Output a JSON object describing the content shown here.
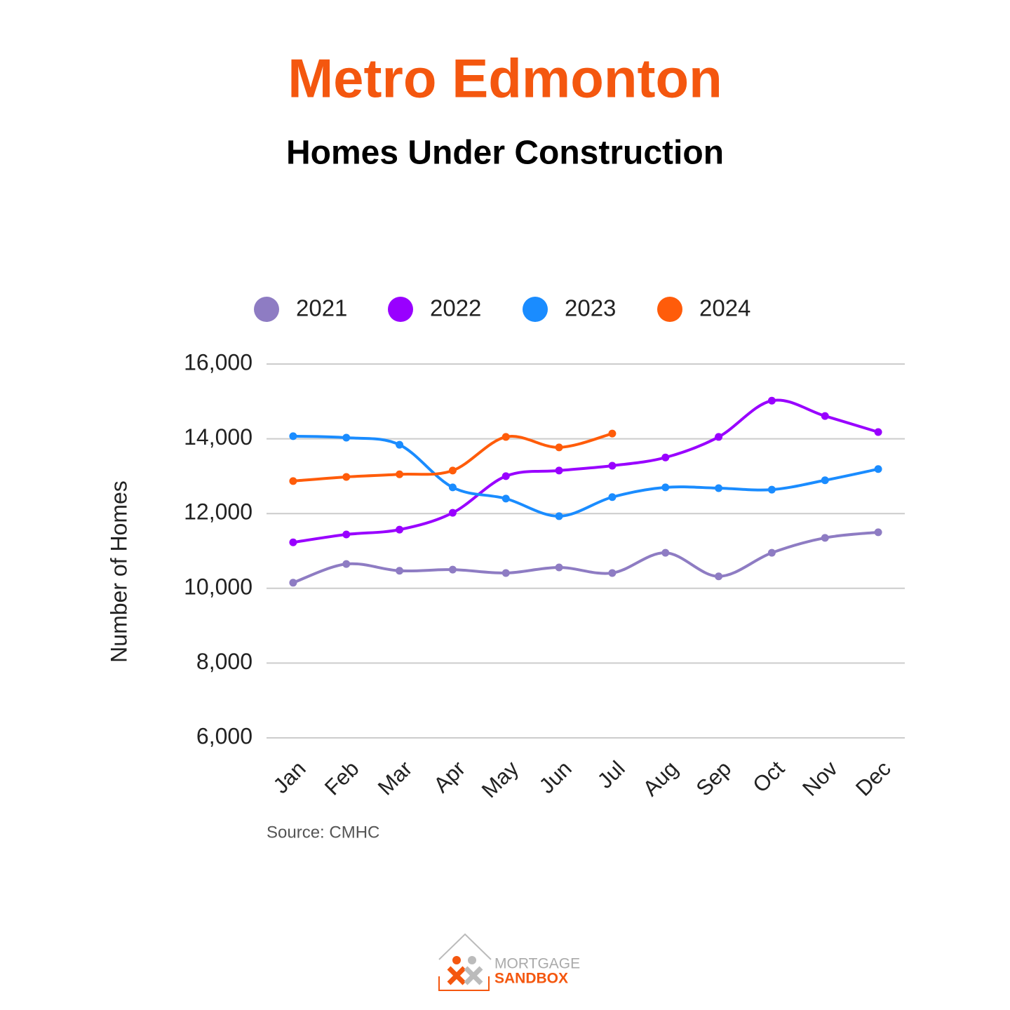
{
  "chart_data": {
    "type": "line",
    "title": "Metro Edmonton",
    "subtitle": "Homes Under Construction",
    "y_label": "Number of Homes",
    "source": "Source: CMHC",
    "categories": [
      "Jan",
      "Feb",
      "Mar",
      "Apr",
      "May",
      "Jun",
      "Jul",
      "Aug",
      "Sep",
      "Oct",
      "Nov",
      "Dec"
    ],
    "series": [
      {
        "name": "2021",
        "color": "#8e7cc3",
        "values": [
          10150,
          10650,
          10470,
          10500,
          10410,
          10560,
          10410,
          10950,
          10320,
          10950,
          11350,
          11500
        ]
      },
      {
        "name": "2022",
        "color": "#9900ff",
        "values": [
          11230,
          11440,
          11570,
          12020,
          13000,
          13150,
          13280,
          13500,
          14050,
          15020,
          14610,
          14180
        ]
      },
      {
        "name": "2023",
        "color": "#1a8cff",
        "values": [
          14070,
          14030,
          13840,
          12700,
          12400,
          11930,
          12440,
          12700,
          12680,
          12640,
          12890,
          13190
        ]
      },
      {
        "name": "2024",
        "color": "#ff5c0a",
        "values": [
          12870,
          12980,
          13050,
          13150,
          14050,
          13770,
          14140,
          null,
          null,
          null,
          null,
          null
        ]
      }
    ],
    "ylim": [
      6000,
      16000
    ],
    "yticks": [
      {
        "value": 6000,
        "label": "6,000"
      },
      {
        "value": 8000,
        "label": "8,000"
      },
      {
        "value": 10000,
        "label": "10,000"
      },
      {
        "value": 12000,
        "label": "12,000"
      },
      {
        "value": 14000,
        "label": "14,000"
      },
      {
        "value": 16000,
        "label": "16,000"
      }
    ],
    "grid": true,
    "legend": "top"
  },
  "logo": {
    "line1": "MORTGAGE",
    "line2": "SANDBOX"
  }
}
